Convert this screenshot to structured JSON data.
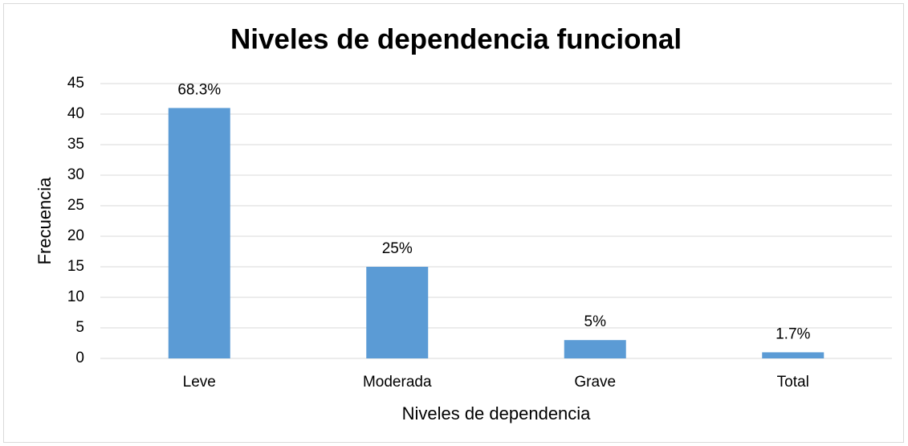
{
  "chart_data": {
    "type": "bar",
    "title": "Niveles de dependencia funcional",
    "categories": [
      "Leve",
      "Moderada",
      "Grave",
      "Total"
    ],
    "values": [
      41,
      15,
      3,
      1
    ],
    "annotations": [
      "68.3%",
      "25%",
      "5%",
      "1.7%"
    ],
    "color": "#5b9bd5",
    "xlabel": "Niveles de dependencia",
    "ylabel": "Frecuencia",
    "ylim": [
      0,
      45
    ],
    "yticks": [
      0,
      5,
      10,
      15,
      20,
      25,
      30,
      35,
      40,
      45
    ],
    "grid": true
  }
}
